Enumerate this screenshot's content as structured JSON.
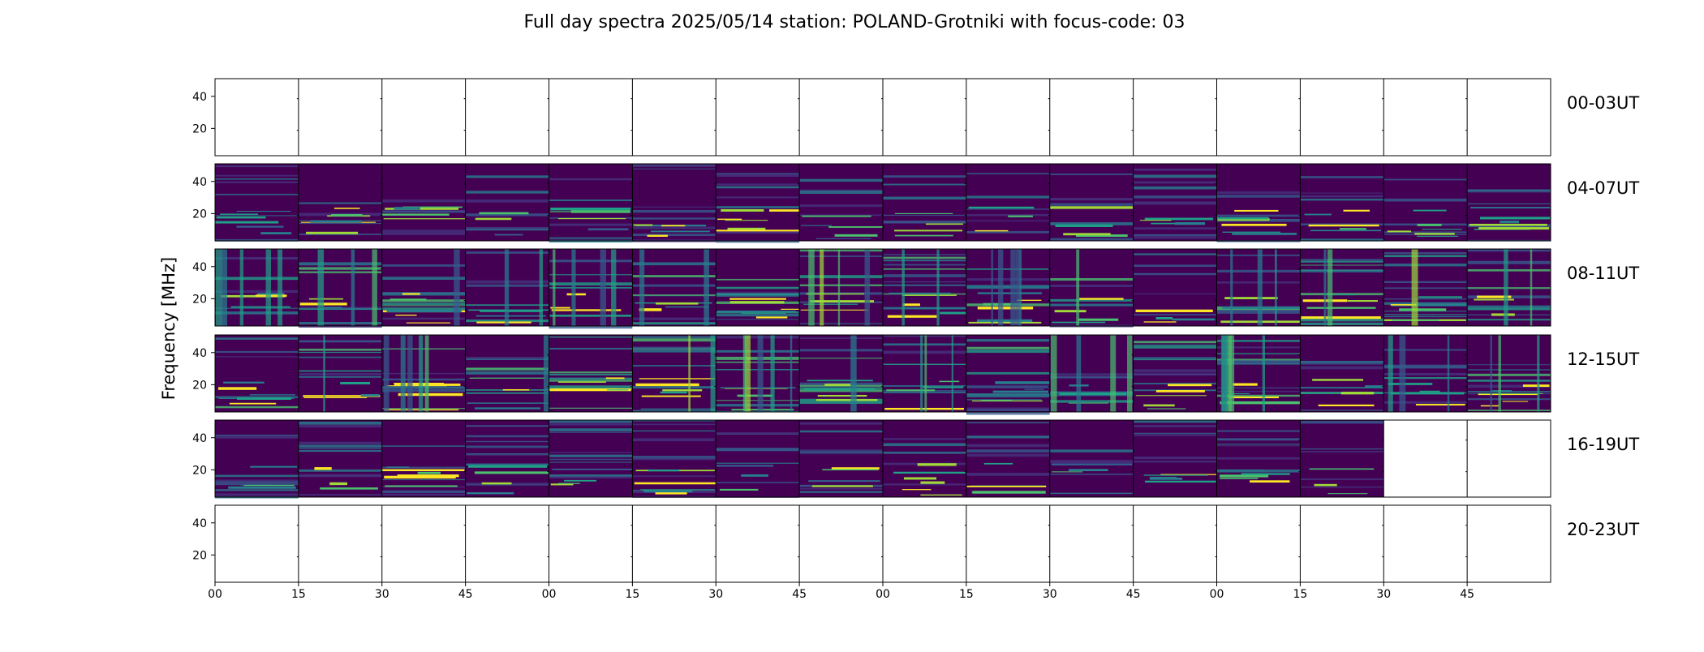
{
  "chart_data": {
    "type": "heatmap",
    "title": "Full day spectra 2025/05/14 station: POLAND-Grotniki with focus-code: 03",
    "ylabel": "Frequency [MHz]",
    "xlabel": "",
    "y_range_mhz": [
      3,
      51
    ],
    "y_ticks": [
      "20",
      "40"
    ],
    "x_tick_labels": [
      "00",
      "15",
      "30",
      "45",
      "00",
      "15",
      "30",
      "45",
      "00",
      "15",
      "30",
      "45",
      "00",
      "15",
      "30",
      "45"
    ],
    "colormap": [
      "#440154",
      "#46327e",
      "#365c8d",
      "#277f8e",
      "#1fa187",
      "#4ac16d",
      "#a0da39",
      "#fde725"
    ],
    "panels_per_row": 16,
    "rows": [
      {
        "label": "00-03UT",
        "data_panels": 0
      },
      {
        "label": "04-07UT",
        "data_panels": 16
      },
      {
        "label": "08-11UT",
        "data_panels": 16
      },
      {
        "label": "12-15UT",
        "data_panels": 16
      },
      {
        "label": "16-19UT",
        "data_panels": 14
      },
      {
        "label": "20-23UT",
        "data_panels": 0
      }
    ]
  }
}
